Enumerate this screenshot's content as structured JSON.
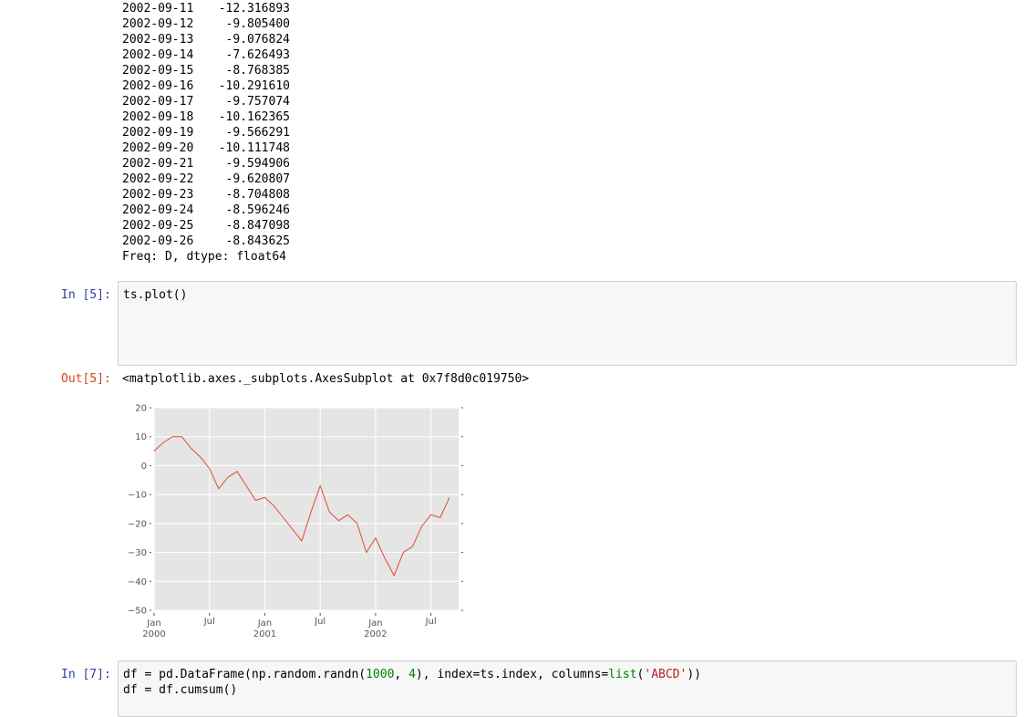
{
  "output_series": {
    "rows": [
      [
        "2002-09-11",
        "-12.316893"
      ],
      [
        "2002-09-12",
        "-9.805400"
      ],
      [
        "2002-09-13",
        "-9.076824"
      ],
      [
        "2002-09-14",
        "-7.626493"
      ],
      [
        "2002-09-15",
        "-8.768385"
      ],
      [
        "2002-09-16",
        "-10.291610"
      ],
      [
        "2002-09-17",
        "-9.757074"
      ],
      [
        "2002-09-18",
        "-10.162365"
      ],
      [
        "2002-09-19",
        "-9.566291"
      ],
      [
        "2002-09-20",
        "-10.111748"
      ],
      [
        "2002-09-21",
        "-9.594906"
      ],
      [
        "2002-09-22",
        "-9.620807"
      ],
      [
        "2002-09-23",
        "-8.704808"
      ],
      [
        "2002-09-24",
        "-8.596246"
      ],
      [
        "2002-09-25",
        "-8.847098"
      ],
      [
        "2002-09-26",
        "-8.843625"
      ]
    ],
    "footer": "Freq: D, dtype: float64"
  },
  "cell_5": {
    "prompt_in": "In [5]:",
    "code": "ts.plot()",
    "prompt_out": "Out[5]:",
    "output": "<matplotlib.axes._subplots.AxesSubplot at 0x7f8d0c019750>"
  },
  "cell_7": {
    "prompt_in": "In [7]:",
    "code": [
      [
        "df = pd.DataFrame(np.random.randn(",
        "1000",
        ", ",
        "4",
        "), index=ts.index, columns=",
        "list",
        "(",
        "'ABCD'",
        "))"
      ],
      [
        "df = df.cumsum()"
      ]
    ]
  },
  "chart_data": {
    "type": "line",
    "color": "#e24a33",
    "grid": true,
    "x": [
      "2000-01",
      "2000-02",
      "2000-03",
      "2000-04",
      "2000-05",
      "2000-06",
      "2000-07",
      "2000-08",
      "2000-09",
      "2000-10",
      "2000-11",
      "2000-12",
      "2001-01",
      "2001-02",
      "2001-03",
      "2001-04",
      "2001-05",
      "2001-06",
      "2001-07",
      "2001-08",
      "2001-09",
      "2001-10",
      "2001-11",
      "2001-12",
      "2002-01",
      "2002-02",
      "2002-03",
      "2002-04",
      "2002-05",
      "2002-06",
      "2002-07",
      "2002-08",
      "2002-09"
    ],
    "values": [
      5,
      8,
      10,
      10,
      6,
      3,
      -1,
      -8,
      -4,
      -2,
      -7,
      -12,
      -11,
      -14,
      -18,
      -22,
      -26,
      -16,
      -7,
      -16,
      -19,
      -17,
      -20,
      -30,
      -25,
      -32,
      -38,
      -30,
      -28,
      -21,
      -17,
      -18,
      -11
    ],
    "xlim": [
      "2000-01",
      "2002-10"
    ],
    "xticks": [
      {
        "value": "2000-01",
        "label": [
          "Jan",
          "2000"
        ]
      },
      {
        "value": "2000-07",
        "label": [
          "Jul"
        ]
      },
      {
        "value": "2001-01",
        "label": [
          "Jan",
          "2001"
        ]
      },
      {
        "value": "2001-07",
        "label": [
          "Jul"
        ]
      },
      {
        "value": "2002-01",
        "label": [
          "Jan",
          "2002"
        ]
      },
      {
        "value": "2002-07",
        "label": [
          "Jul"
        ]
      }
    ],
    "ylim": [
      -50,
      20
    ],
    "yticks": [
      20,
      10,
      0,
      {
        "value": -10,
        "label": "−10"
      },
      {
        "value": -20,
        "label": "−20"
      },
      {
        "value": -30,
        "label": "−30"
      },
      {
        "value": -40,
        "label": "−40"
      },
      {
        "value": -50,
        "label": "−50"
      }
    ]
  }
}
